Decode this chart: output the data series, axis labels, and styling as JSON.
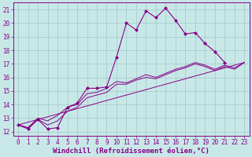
{
  "xlabel": "Windchill (Refroidissement éolien,°C)",
  "bg_color": "#c8e8e8",
  "grid_color": "#a0c8c8",
  "line_color": "#880088",
  "xlim": [
    -0.5,
    23.5
  ],
  "ylim": [
    11.7,
    21.5
  ],
  "xticks": [
    0,
    1,
    2,
    3,
    4,
    5,
    6,
    7,
    8,
    9,
    10,
    11,
    12,
    13,
    14,
    15,
    16,
    17,
    18,
    19,
    20,
    21,
    22,
    23
  ],
  "yticks": [
    12,
    13,
    14,
    15,
    16,
    17,
    18,
    19,
    20,
    21
  ],
  "line_marked": {
    "x": [
      0,
      1,
      2,
      3,
      4,
      5,
      6,
      7,
      8,
      9,
      10,
      11,
      12,
      13,
      14,
      15,
      16,
      17,
      18,
      19,
      20,
      21
    ],
    "y": [
      12.5,
      12.2,
      12.9,
      12.2,
      12.3,
      13.8,
      14.1,
      15.2,
      15.2,
      15.3,
      17.5,
      20.0,
      19.5,
      20.9,
      20.4,
      21.1,
      20.2,
      19.2,
      19.3,
      18.5,
      17.9,
      17.1
    ]
  },
  "line_straight": {
    "x": [
      0,
      23
    ],
    "y": [
      12.5,
      17.1
    ]
  },
  "line_mid1": {
    "x": [
      0,
      1,
      2,
      3,
      4,
      5,
      6,
      7,
      8,
      9,
      10,
      11,
      12,
      13,
      14,
      15,
      16,
      17,
      18,
      19,
      20,
      21,
      22,
      23
    ],
    "y": [
      12.5,
      12.3,
      12.9,
      12.5,
      12.8,
      13.5,
      13.8,
      14.5,
      14.7,
      14.9,
      15.5,
      15.5,
      15.8,
      16.0,
      15.9,
      16.2,
      16.5,
      16.7,
      17.0,
      16.8,
      16.5,
      16.8,
      16.6,
      17.1
    ]
  },
  "line_mid2": {
    "x": [
      0,
      1,
      2,
      3,
      4,
      5,
      6,
      7,
      8,
      9,
      10,
      11,
      12,
      13,
      14,
      15,
      16,
      17,
      18,
      19,
      20,
      21,
      22,
      23
    ],
    "y": [
      12.5,
      12.3,
      13.0,
      12.8,
      13.2,
      13.8,
      14.0,
      14.8,
      14.9,
      15.2,
      15.7,
      15.6,
      15.9,
      16.2,
      16.0,
      16.3,
      16.6,
      16.8,
      17.1,
      16.9,
      16.6,
      16.9,
      16.7,
      17.1
    ]
  },
  "xlabel_fontsize": 6.5,
  "tick_fontsize": 5.5
}
